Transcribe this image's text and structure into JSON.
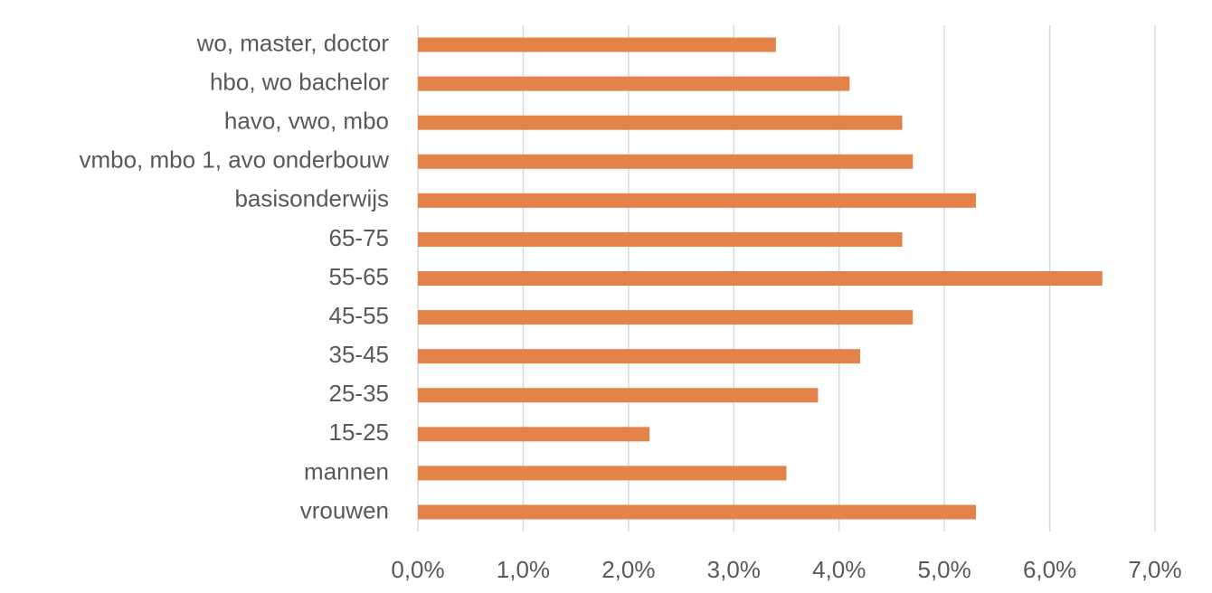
{
  "chart_data": {
    "type": "bar",
    "orientation": "horizontal",
    "categories": [
      "wo, master, doctor",
      "hbo, wo bachelor",
      "havo, vwo, mbo",
      "vmbo, mbo 1, avo onderbouw",
      "basisonderwijs",
      "65-75",
      "55-65",
      "45-55",
      "35-45",
      "25-35",
      "15-25",
      "mannen",
      "vrouwen"
    ],
    "values": [
      3.4,
      4.1,
      4.6,
      4.7,
      5.3,
      4.6,
      6.5,
      4.7,
      4.2,
      3.8,
      2.2,
      3.5,
      5.3
    ],
    "color": "#e3834a",
    "xlim": [
      0,
      7
    ],
    "xticks": [
      {
        "value": 0,
        "label": "0,0%"
      },
      {
        "value": 1,
        "label": "1,0%"
      },
      {
        "value": 2,
        "label": "2,0%"
      },
      {
        "value": 3,
        "label": "3,0%"
      },
      {
        "value": 4,
        "label": "4,0%"
      },
      {
        "value": 5,
        "label": "5,0%"
      },
      {
        "value": 6,
        "label": "6,0%"
      },
      {
        "value": 7,
        "label": "7,0%"
      }
    ],
    "grid": true
  }
}
